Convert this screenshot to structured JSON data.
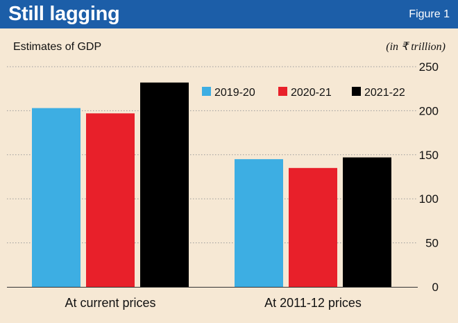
{
  "header": {
    "title": "Still lagging",
    "figure_label": "Figure 1"
  },
  "colors": {
    "header_bg": "#1c5ea8",
    "panel_bg": "#f6e8d4",
    "series": [
      "#3daee3",
      "#e8202a",
      "#000000"
    ]
  },
  "chart_data": {
    "type": "bar",
    "title": "Estimates of GDP",
    "unit_label": "(in ₹ trillion)",
    "categories": [
      "At current prices",
      "At 2011-12 prices"
    ],
    "series": [
      {
        "name": "2019-20",
        "values": [
          203,
          145
        ]
      },
      {
        "name": "2020-21",
        "values": [
          197,
          135
        ]
      },
      {
        "name": "2021-22",
        "values": [
          232,
          147
        ]
      }
    ],
    "yticks": [
      0,
      50,
      100,
      150,
      200,
      250
    ],
    "ylim": [
      0,
      250
    ],
    "y_axis_position": "right",
    "grid": "horizontal dotted",
    "legend_position": "top-right"
  }
}
